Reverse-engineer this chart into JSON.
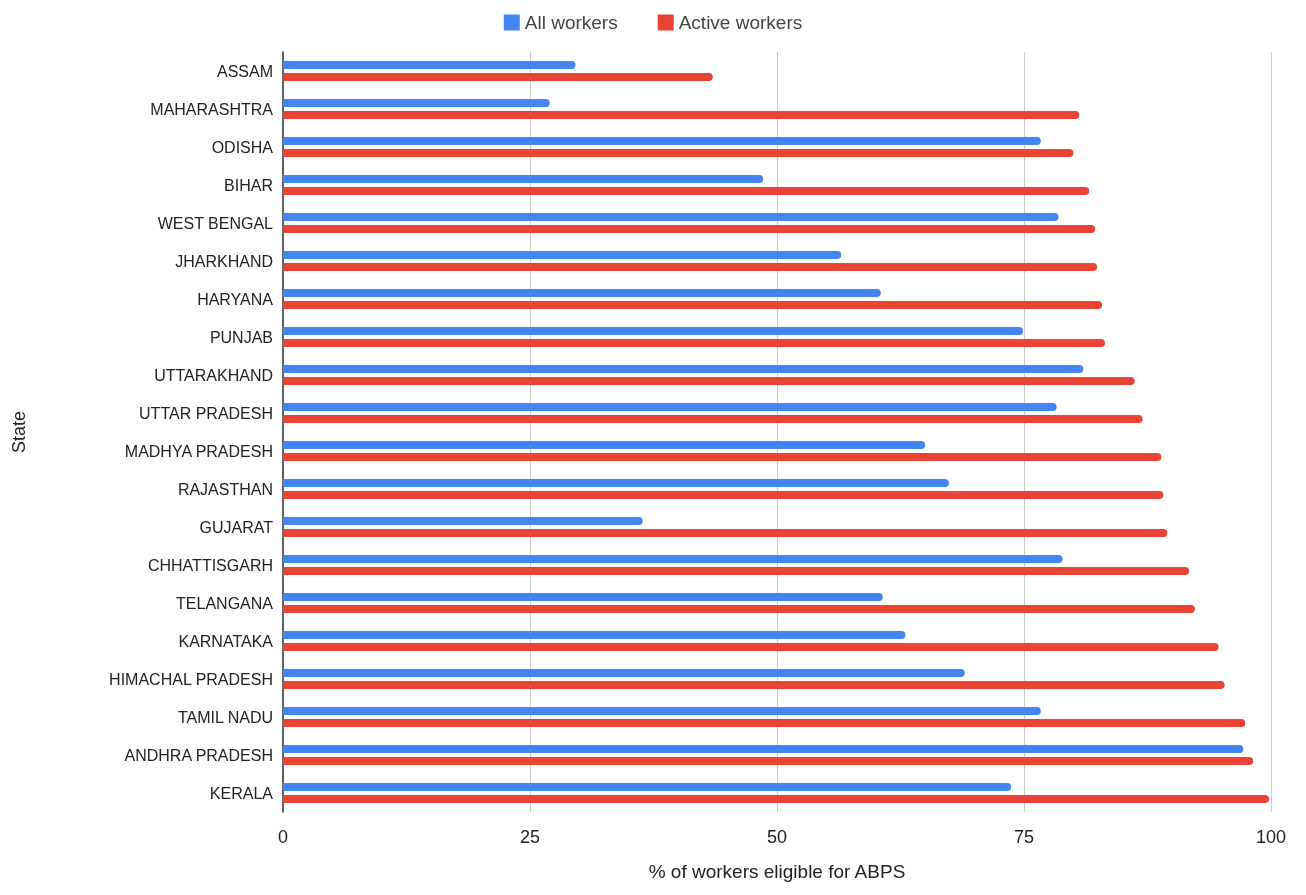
{
  "chart_data": {
    "type": "bar",
    "orientation": "horizontal",
    "xlabel": "% of workers eligible for ABPS",
    "ylabel": "State",
    "categories": [
      "ASSAM",
      "MAHARASHTRA",
      "ODISHA",
      "BIHAR",
      "WEST BENGAL",
      "JHARKHAND",
      "HARYANA",
      "PUNJAB",
      "UTTARAKHAND",
      "UTTAR PRADESH",
      "MADHYA PRADESH",
      "RAJASTHAN",
      "GUJARAT",
      "CHHATTISGARH",
      "TELANGANA",
      "KARNATAKA",
      "HIMACHAL PRADESH",
      "TAMIL NADU",
      "ANDHRA PRADESH",
      "KERALA"
    ],
    "series": [
      {
        "name": "All workers",
        "color": "#4285f4",
        "values": [
          29.6,
          27.0,
          76.7,
          48.6,
          78.5,
          56.5,
          60.5,
          74.9,
          81.0,
          78.3,
          65.0,
          67.4,
          36.4,
          78.9,
          60.7,
          63.0,
          69.0,
          76.7,
          97.2,
          73.7
        ]
      },
      {
        "name": "Active workers",
        "color": "#ea4335",
        "values": [
          43.5,
          80.6,
          80.0,
          81.6,
          82.2,
          82.4,
          82.9,
          83.2,
          86.2,
          87.0,
          88.9,
          89.1,
          89.5,
          91.7,
          92.3,
          94.7,
          95.3,
          97.4,
          98.2,
          99.8
        ]
      }
    ],
    "xlim": [
      0,
      100
    ],
    "xticks": [
      0,
      25,
      50,
      75,
      100
    ],
    "grid": "x",
    "legend": "top"
  }
}
